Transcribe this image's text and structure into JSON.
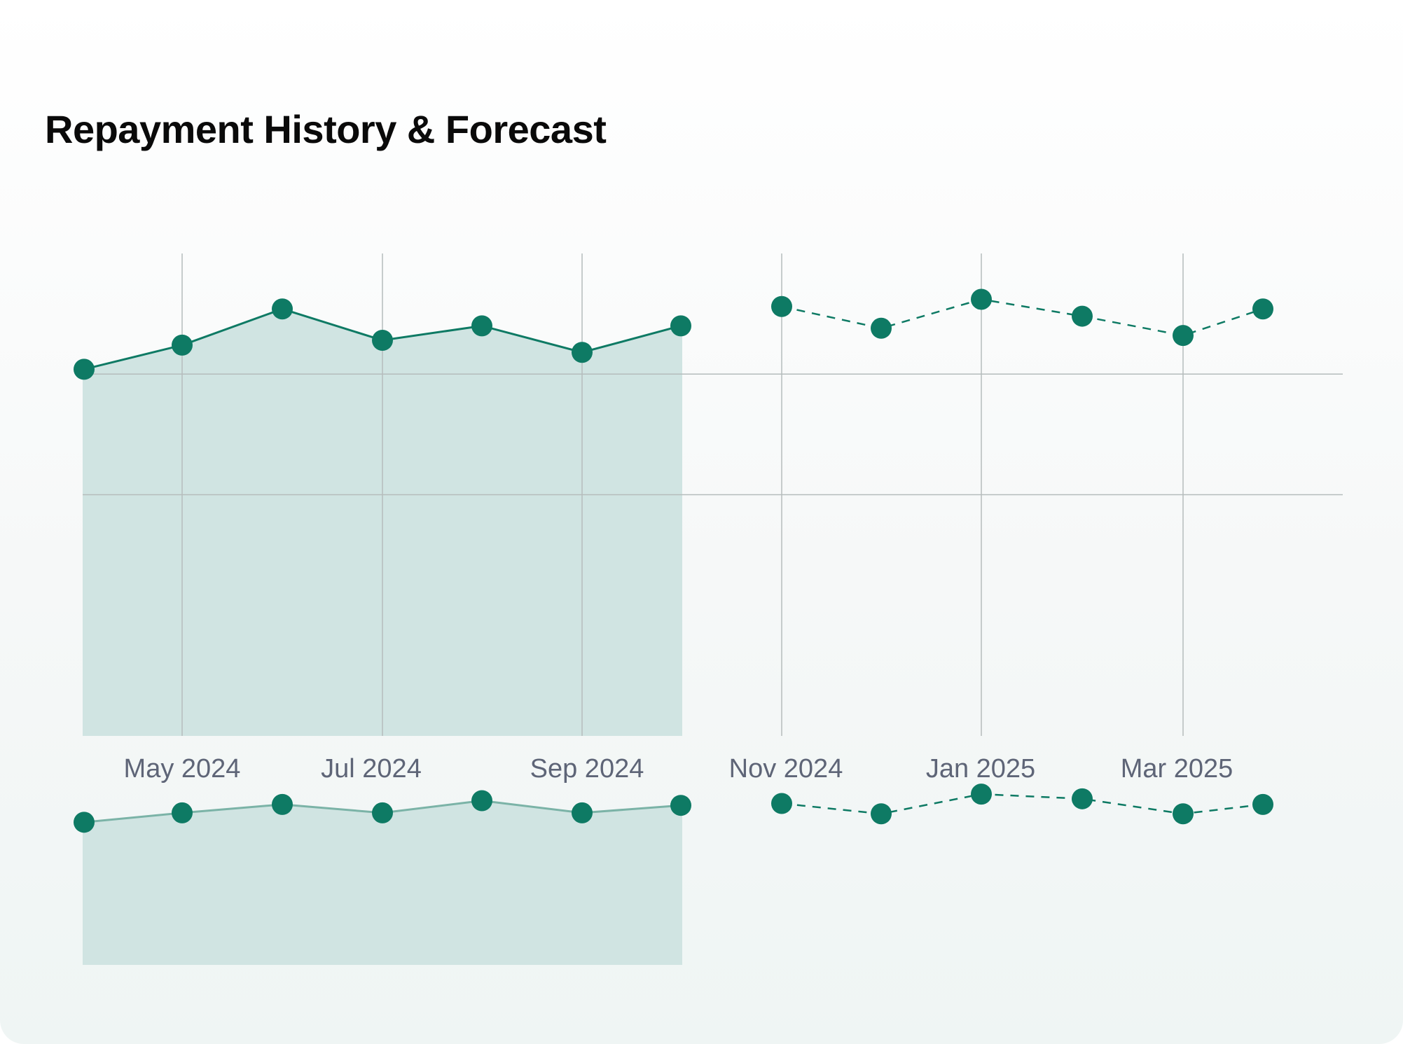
{
  "chart_data": {
    "type": "line",
    "title": "Repayment History & Forecast",
    "x_ticks": [
      "May 2024",
      "Jul 2024",
      "Sep 2024",
      "Nov 2024",
      "Jan 2025",
      "Mar 2025"
    ],
    "main": {
      "ylim": [
        0,
        100
      ],
      "grid": true,
      "series": [
        {
          "style": "solid-area",
          "x": [
            "2024-04",
            "2024-05",
            "2024-06",
            "2024-07",
            "2024-08",
            "2024-09",
            "2024-10"
          ],
          "values": [
            76,
            81,
            88.5,
            82,
            85,
            79.5,
            85
          ]
        },
        {
          "style": "dashed",
          "x": [
            "2024-11",
            "2024-12",
            "2025-01",
            "2025-02",
            "2025-03",
            "2025-04"
          ],
          "values": [
            89,
            84.5,
            90.5,
            87,
            83,
            88.5
          ]
        }
      ]
    },
    "overview": {
      "series": [
        {
          "style": "solid-area",
          "values": [
            76,
            81,
            85.5,
            81,
            87.5,
            81,
            85
          ]
        },
        {
          "style": "dashed",
          "values": [
            86,
            80.5,
            91,
            88.5,
            80.5,
            85.5
          ]
        }
      ]
    },
    "colors": {
      "line": "#0e7a64",
      "marker": "#0e7a64",
      "area": "#d0e4e2",
      "grid": "#b5bcbc",
      "tick_text": "#5e6577"
    }
  }
}
